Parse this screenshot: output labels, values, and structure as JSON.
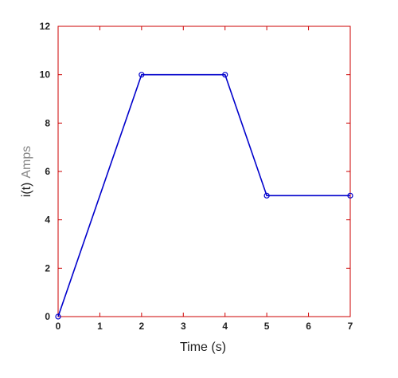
{
  "chart_data": {
    "type": "line",
    "title": "",
    "xlabel": "Time (s)",
    "ylabel_parts": [
      "i(t)",
      "Amps"
    ],
    "xlim": [
      0,
      7
    ],
    "ylim": [
      0,
      12
    ],
    "xticks": [
      0,
      1,
      2,
      3,
      4,
      5,
      6,
      7
    ],
    "yticks": [
      0,
      2,
      4,
      6,
      8,
      10,
      12
    ],
    "grid": false,
    "series": [
      {
        "x": [
          0,
          2,
          4,
          5,
          7
        ],
        "y": [
          0,
          10,
          10,
          5,
          5
        ],
        "color": "#0000cc",
        "marker": "circle"
      }
    ],
    "frame_color": "#cc0000"
  }
}
